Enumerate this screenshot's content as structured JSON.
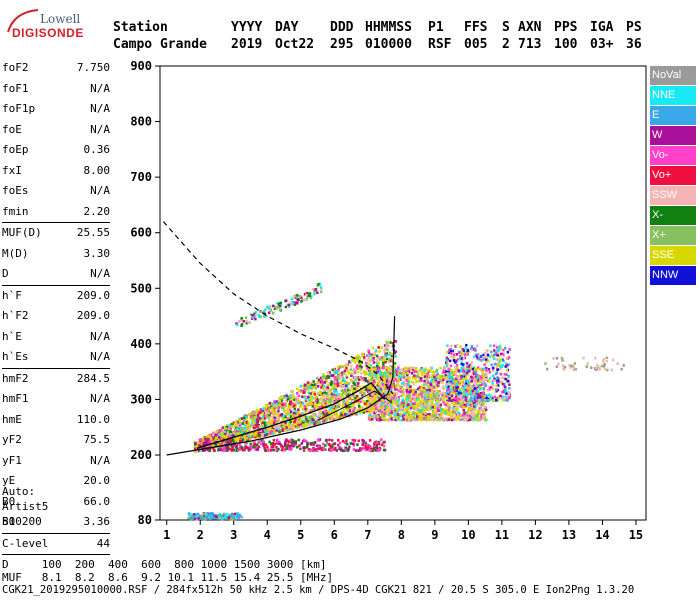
{
  "logo": {
    "line1": "Lowell",
    "line2": "DIGISONDE"
  },
  "header": {
    "cols": [
      "Station",
      "YYYY",
      "DAY",
      "DDD",
      "HHMMSS",
      "P1",
      "FFS",
      "S",
      "AXN",
      "PPS",
      "IGA",
      "PS"
    ],
    "values": [
      "Campo Grande",
      "2019",
      "Oct22",
      "295",
      "010000",
      "RSF",
      "005",
      "2",
      "713",
      "100",
      "03+",
      "36"
    ]
  },
  "params": [
    {
      "group": 1,
      "items": [
        {
          "name": "foF2",
          "value": "7.750"
        },
        {
          "name": "foF1",
          "value": "N/A"
        },
        {
          "name": "foF1p",
          "value": "N/A"
        },
        {
          "name": "foE",
          "value": "N/A"
        },
        {
          "name": "foEp",
          "value": "0.36"
        },
        {
          "name": "fxI",
          "value": "8.00"
        },
        {
          "name": "foEs",
          "value": "N/A"
        },
        {
          "name": "fmin",
          "value": "2.20"
        }
      ]
    },
    {
      "group": 2,
      "items": [
        {
          "name": "MUF(D)",
          "value": "25.55"
        },
        {
          "name": "M(D)",
          "value": "3.30"
        },
        {
          "name": "D",
          "value": "N/A"
        }
      ]
    },
    {
      "group": 3,
      "items": [
        {
          "name": "h`F",
          "value": "209.0"
        },
        {
          "name": "h`F2",
          "value": "209.0"
        },
        {
          "name": "h`E",
          "value": "N/A"
        },
        {
          "name": "h`Es",
          "value": "N/A"
        }
      ]
    },
    {
      "group": 4,
      "items": [
        {
          "name": "hmF2",
          "value": "284.5"
        },
        {
          "name": "hmF1",
          "value": "N/A"
        },
        {
          "name": "hmE",
          "value": "110.0"
        },
        {
          "name": "yF2",
          "value": "75.5"
        },
        {
          "name": "yF1",
          "value": "N/A"
        },
        {
          "name": "yE",
          "value": "20.0"
        },
        {
          "name": "B0",
          "value": "66.0"
        },
        {
          "name": "B1",
          "value": "3.36"
        }
      ]
    },
    {
      "group": 5,
      "items": [
        {
          "name": "C-level",
          "value": "44"
        }
      ]
    }
  ],
  "auto": {
    "line1": "Auto:",
    "line2": "Artist5",
    "line3": "500200"
  },
  "legend": [
    {
      "label": "NoVal",
      "color": "#9a9a9a"
    },
    {
      "label": "NNE",
      "color": "#19e8f5"
    },
    {
      "label": "E",
      "color": "#3aa8e8"
    },
    {
      "label": "W",
      "color": "#a8109a"
    },
    {
      "label": "Vo-",
      "color": "#ff40c8"
    },
    {
      "label": "Vo+",
      "color": "#f01040"
    },
    {
      "label": "SSW",
      "color": "#f4b4b4"
    },
    {
      "label": "X-",
      "color": "#108010"
    },
    {
      "label": "X+",
      "color": "#88c060"
    },
    {
      "label": "SSE",
      "color": "#d8d800"
    },
    {
      "label": "NNW",
      "color": "#1010d8"
    }
  ],
  "footer": {
    "line1": "D     100  200  400  600  800 1000 1500 3000 [km]",
    "line2": "MUF   8.1  8.2  8.6  9.2 10.1 11.5 15.4 25.5 [MHz]",
    "line3": "CGK21_2019295010000.RSF / 284fx512h 50 kHz 2.5 km / DPS-4D CGK21 821 / 20.5 S 305.0 E Ion2Png 1.3.20"
  },
  "chart_data": {
    "type": "scatter",
    "title": "",
    "xlabel": "",
    "ylabel": "",
    "xlim": [
      0.8,
      15.3
    ],
    "ylim": [
      80,
      900
    ],
    "x_ticks": [
      1,
      2,
      3,
      4,
      5,
      6,
      7,
      8,
      9,
      10,
      11,
      12,
      13,
      14,
      15
    ],
    "y_ticks": [
      80,
      200,
      300,
      400,
      500,
      600,
      700,
      800,
      900
    ],
    "grid": false,
    "legend_position": "right",
    "traces": {
      "dashed_profile": [
        [
          0.9,
          620
        ],
        [
          2.0,
          545
        ],
        [
          3.0,
          490
        ],
        [
          4.0,
          450
        ],
        [
          5.0,
          418
        ],
        [
          6.0,
          392
        ],
        [
          6.8,
          368
        ],
        [
          7.3,
          345
        ],
        [
          7.75,
          310
        ]
      ],
      "solid_profile": [
        [
          1.0,
          200
        ],
        [
          2.0,
          210
        ],
        [
          3.5,
          225
        ],
        [
          5.0,
          245
        ],
        [
          6.2,
          265
        ],
        [
          7.0,
          285
        ],
        [
          7.6,
          310
        ],
        [
          7.75,
          340
        ],
        [
          7.8,
          450
        ]
      ],
      "trace_o": [
        [
          1.9,
          212
        ],
        [
          3.0,
          232
        ],
        [
          4.0,
          250
        ],
        [
          5.0,
          270
        ],
        [
          6.0,
          292
        ],
        [
          6.7,
          315
        ],
        [
          7.1,
          330
        ],
        [
          7.5,
          300
        ]
      ],
      "trace_x": [
        [
          5.5,
          262
        ],
        [
          6.5,
          292
        ],
        [
          7.2,
          315
        ],
        [
          7.7,
          295
        ]
      ]
    },
    "series": [
      {
        "name": "SSE",
        "x_range": [
          2.0,
          10.5
        ],
        "y_range": [
          210,
          330
        ]
      },
      {
        "name": "SSW",
        "x_range": [
          3.0,
          10.0
        ],
        "y_range": [
          230,
          400
        ]
      },
      {
        "name": "Vo+",
        "x_range": [
          2.0,
          9.0
        ],
        "y_range": [
          210,
          380
        ]
      },
      {
        "name": "X-",
        "x_range": [
          3.0,
          7.5
        ],
        "y_range": [
          230,
          320
        ]
      },
      {
        "name": "NNW",
        "x_range": [
          8.5,
          10.8
        ],
        "y_range": [
          300,
          400
        ]
      },
      {
        "name": "NNE",
        "x_range": [
          8.0,
          11.0
        ],
        "y_range": [
          300,
          420
        ]
      },
      {
        "name": "E",
        "x_range": [
          1.8,
          3.2
        ],
        "y_range": [
          80,
          100
        ]
      },
      {
        "name": "NoVal",
        "x_range": [
          12.2,
          14.6
        ],
        "y_range": [
          350,
          380
        ]
      }
    ]
  }
}
